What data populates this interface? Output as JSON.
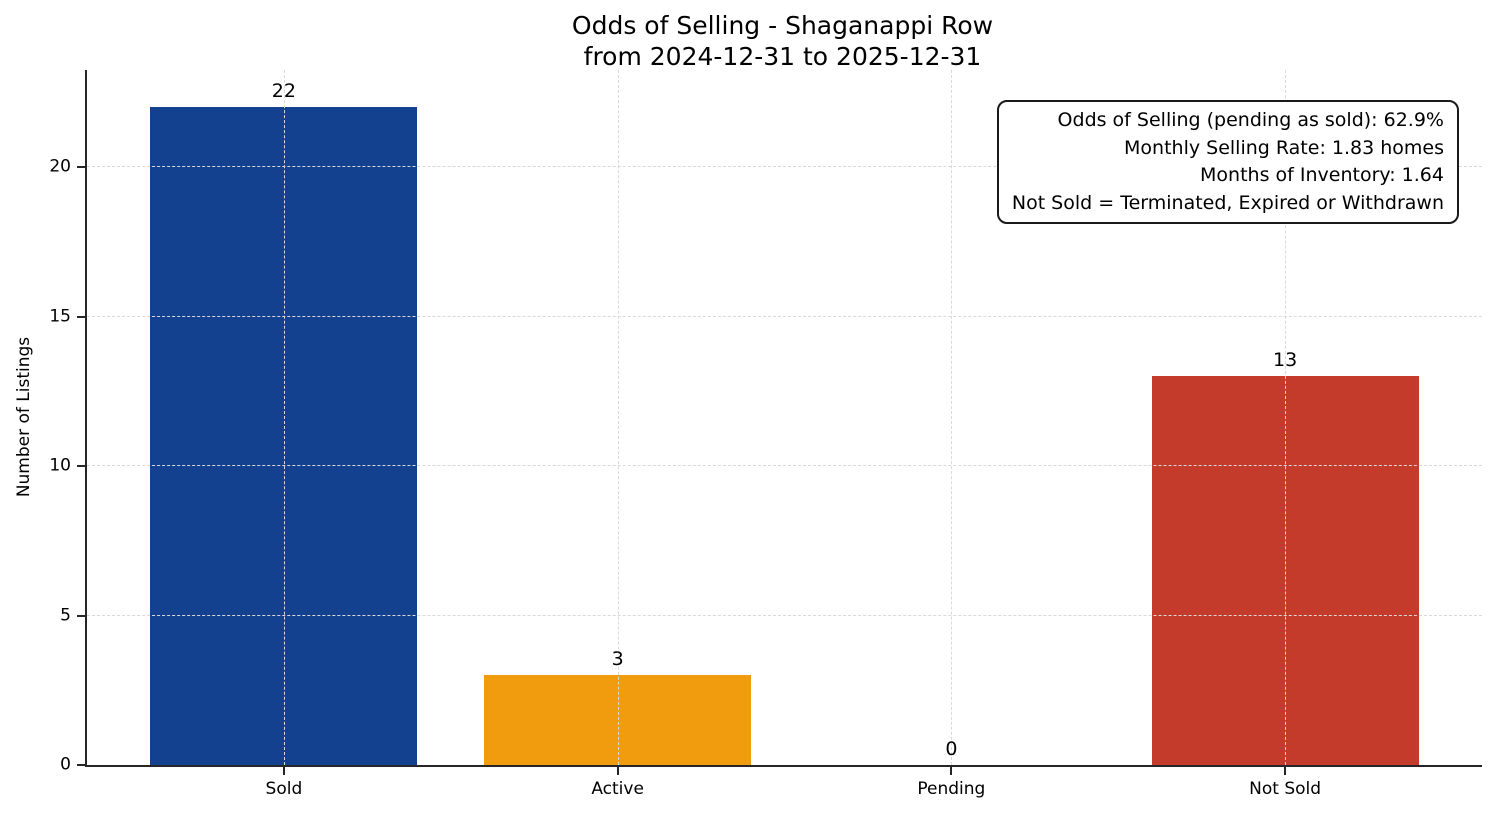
{
  "title": "Odds of Selling - Shaganappi Row",
  "subtitle": "from 2024-12-31 to 2025-12-31",
  "ylabel": "Number of Listings",
  "annotation": {
    "lines": [
      "Odds of Selling (pending as sold): 62.9%",
      "Monthly Selling Rate: 1.83 homes",
      "Months of Inventory: 1.64",
      "Not Sold = Terminated, Expired or Withdrawn"
    ]
  },
  "chart_data": {
    "type": "bar",
    "title": "Odds of Selling - Shaganappi Row\nfrom 2024-12-31 to 2025-12-31",
    "xlabel": "",
    "ylabel": "Number of Listings",
    "categories": [
      "Sold",
      "Active",
      "Pending",
      "Not Sold"
    ],
    "values": [
      22,
      3,
      0,
      13
    ],
    "bar_colors": [
      "#14418f",
      "#f19c0f",
      "#9a9a9a",
      "#c43b2c"
    ],
    "value_labels": [
      "22",
      "3",
      "0",
      "13"
    ],
    "yticks": [
      0,
      5,
      10,
      15,
      20
    ],
    "ylim": [
      0,
      23.25
    ],
    "grid": "dashed, light gray, horizontal and vertical, drawn above bars",
    "legend_position": "none",
    "stats": {
      "odds_of_selling_pending_as_sold_pct": 62.9,
      "monthly_selling_rate_homes": 1.83,
      "months_of_inventory": 1.64
    },
    "colors": {
      "spine": "#262626",
      "grid": "#d9d9d9",
      "text": "#000000",
      "background": "#ffffff"
    }
  }
}
